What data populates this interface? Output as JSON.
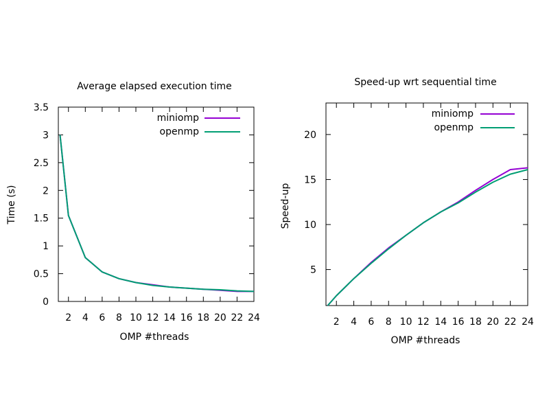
{
  "chart_data": [
    {
      "type": "line",
      "title": "Average elapsed execution time",
      "xlabel": "OMP #threads",
      "ylabel": "Time (s)",
      "xlim": [
        0.8,
        24
      ],
      "ylim": [
        0,
        3.5
      ],
      "xticks": [
        2,
        4,
        6,
        8,
        10,
        12,
        14,
        16,
        18,
        20,
        22,
        24
      ],
      "yticks": [
        0,
        0.5,
        1,
        1.5,
        2,
        2.5,
        3,
        3.5
      ],
      "ytick_labels": [
        "0",
        "0.5",
        "1",
        "1.5",
        "2",
        "2.5",
        "3",
        "3.5"
      ],
      "grid": false,
      "legend_position": "top-right",
      "series": [
        {
          "name": "miniomp",
          "color": "#9400d3",
          "x": [
            1,
            2,
            4,
            6,
            8,
            10,
            12,
            14,
            16,
            18,
            20,
            22,
            24
          ],
          "y": [
            3.0,
            1.55,
            0.79,
            0.53,
            0.41,
            0.34,
            0.3,
            0.26,
            0.24,
            0.22,
            0.2,
            0.18,
            0.18
          ]
        },
        {
          "name": "openmp",
          "color": "#009e73",
          "x": [
            1,
            2,
            4,
            6,
            8,
            10,
            12,
            14,
            16,
            18,
            20,
            22,
            24
          ],
          "y": [
            3.0,
            1.55,
            0.79,
            0.53,
            0.41,
            0.34,
            0.29,
            0.26,
            0.24,
            0.22,
            0.21,
            0.19,
            0.18
          ]
        }
      ]
    },
    {
      "type": "line",
      "title": "Speed-up  wrt sequential time",
      "xlabel": "OMP #threads",
      "ylabel": "Speed-up",
      "xlim": [
        0.8,
        24
      ],
      "ylim": [
        1,
        23.5
      ],
      "xticks": [
        2,
        4,
        6,
        8,
        10,
        12,
        14,
        16,
        18,
        20,
        22,
        24
      ],
      "yticks": [
        5,
        10,
        15,
        20
      ],
      "ytick_labels": [
        "5",
        "10",
        "15",
        "20"
      ],
      "grid": false,
      "legend_position": "top-right",
      "series": [
        {
          "name": "miniomp",
          "color": "#9400d3",
          "x": [
            1,
            2,
            4,
            6,
            8,
            10,
            12,
            14,
            16,
            18,
            20,
            22,
            24
          ],
          "y": [
            1.0,
            2.1,
            4.0,
            5.8,
            7.4,
            8.8,
            10.2,
            11.4,
            12.5,
            13.8,
            15.0,
            16.1,
            16.3
          ]
        },
        {
          "name": "openmp",
          "color": "#009e73",
          "x": [
            1,
            2,
            4,
            6,
            8,
            10,
            12,
            14,
            16,
            18,
            20,
            22,
            24
          ],
          "y": [
            1.0,
            2.1,
            4.0,
            5.7,
            7.3,
            8.8,
            10.2,
            11.4,
            12.4,
            13.6,
            14.7,
            15.6,
            16.1
          ]
        }
      ]
    }
  ]
}
